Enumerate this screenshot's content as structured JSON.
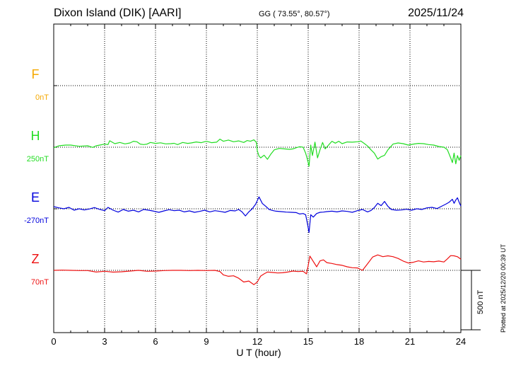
{
  "header": {
    "station": "Dixon Island (DIK)  [AARI]",
    "coords": "GG ( 73.55°,  80.57°)",
    "date": "2025/11/24"
  },
  "footnote": "Plotted at 2025/12/20 00:39 UT",
  "chart_data": {
    "type": "line",
    "title": "",
    "xlabel": "U T (hour)",
    "xlim": [
      0,
      24
    ],
    "x_ticks": [
      "0",
      "3",
      "6",
      "9",
      "12",
      "15",
      "18",
      "21",
      "24"
    ],
    "scale_bar": "500 nT",
    "components": [
      {
        "name": "F",
        "baseline_label": "0nT",
        "color": "#f5a800"
      },
      {
        "name": "H",
        "baseline_label": "250nT",
        "color": "#22dd22"
      },
      {
        "name": "E",
        "baseline_label": "-270nT",
        "color": "#0000dd"
      },
      {
        "name": "Z",
        "baseline_label": "70nT",
        "color": "#ee1111"
      }
    ],
    "series": [
      {
        "name": "H",
        "x": [
          0,
          0.3,
          0.7,
          1.0,
          1.5,
          2.0,
          2.3,
          2.5,
          2.8,
          3.0,
          3.2,
          3.3,
          3.6,
          3.9,
          4.2,
          4.5,
          4.7,
          4.9,
          5.1,
          5.3,
          5.5,
          5.7,
          6.0,
          6.3,
          6.6,
          6.9,
          7.1,
          7.3,
          7.6,
          7.9,
          8.1,
          8.4,
          8.7,
          9.0,
          9.3,
          9.6,
          9.8,
          10.0,
          10.3,
          10.6,
          10.9,
          11.2,
          11.4,
          11.6,
          11.8,
          11.95,
          12.0,
          12.1,
          12.2,
          12.4,
          12.6,
          12.8,
          13.0,
          13.3,
          13.6,
          13.9,
          14.1,
          14.3,
          14.5,
          14.7,
          14.85,
          14.95,
          15.05,
          15.15,
          15.25,
          15.4,
          15.55,
          15.7,
          15.85,
          16.0,
          16.2,
          16.4,
          16.6,
          16.8,
          17.0,
          17.3,
          17.6,
          17.9,
          18.1,
          18.3,
          18.5,
          18.7,
          18.9,
          19.1,
          19.3,
          19.5,
          19.7,
          20.0,
          20.3,
          20.6,
          20.9,
          21.2,
          21.5,
          21.8,
          22.1,
          22.4,
          22.7,
          23.0,
          23.2,
          23.4,
          23.5,
          23.6,
          23.7,
          23.8,
          23.9,
          24.0
        ],
        "y": [
          245,
          262,
          268,
          268,
          258,
          262,
          248,
          262,
          270,
          276,
          272,
          304,
          280,
          290,
          278,
          286,
          300,
          296,
          276,
          272,
          276,
          290,
          282,
          287,
          278,
          280,
          283,
          272,
          290,
          282,
          286,
          294,
          288,
          300,
          288,
          292,
          318,
          300,
          310,
          296,
          303,
          290,
          306,
          300,
          312,
          290,
          220,
          176,
          160,
          183,
          148,
          192,
          228,
          240,
          236,
          232,
          236,
          246,
          254,
          250,
          200,
          150,
          90,
          268,
          180,
          292,
          160,
          230,
          290,
          236,
          268,
          300,
          284,
          300,
          280,
          294,
          292,
          296,
          302,
          282,
          260,
          228,
          200,
          150,
          170,
          182,
          228,
          276,
          286,
          280,
          268,
          276,
          282,
          280,
          272,
          268,
          256,
          250,
          230,
          160,
          120,
          200,
          110,
          180,
          140,
          180
        ]
      },
      {
        "name": "E",
        "x": [
          0,
          0.3,
          0.6,
          0.9,
          1.2,
          1.5,
          1.8,
          2.1,
          2.4,
          2.7,
          3.0,
          3.2,
          3.5,
          3.8,
          4.1,
          4.4,
          4.7,
          5.0,
          5.3,
          5.6,
          5.9,
          6.2,
          6.5,
          6.8,
          7.1,
          7.4,
          7.7,
          8.0,
          8.3,
          8.6,
          8.9,
          9.2,
          9.5,
          9.8,
          10.1,
          10.4,
          10.7,
          10.9,
          11.1,
          11.3,
          11.5,
          11.7,
          11.9,
          12.1,
          12.3,
          12.5,
          12.7,
          12.9,
          13.1,
          13.4,
          13.7,
          14.0,
          14.3,
          14.5,
          14.7,
          14.85,
          14.95,
          15.05,
          15.15,
          15.3,
          15.5,
          15.7,
          15.9,
          16.1,
          16.4,
          16.7,
          17.0,
          17.3,
          17.6,
          17.9,
          18.2,
          18.5,
          18.7,
          18.9,
          19.1,
          19.3,
          19.5,
          19.7,
          19.9,
          20.2,
          20.5,
          20.8,
          21.1,
          21.4,
          21.7,
          22.0,
          22.3,
          22.6,
          22.9,
          23.1,
          23.3,
          23.5,
          23.6,
          23.7,
          23.8,
          23.9,
          24.0
        ],
        "y": [
          -252,
          -262,
          -270,
          -258,
          -282,
          -270,
          -280,
          -272,
          -260,
          -275,
          -286,
          -258,
          -282,
          -298,
          -276,
          -290,
          -282,
          -296,
          -276,
          -282,
          -290,
          -300,
          -288,
          -278,
          -286,
          -282,
          -296,
          -288,
          -300,
          -292,
          -282,
          -296,
          -286,
          -292,
          -300,
          -284,
          -288,
          -276,
          -296,
          -330,
          -296,
          -270,
          -232,
          -170,
          -226,
          -250,
          -276,
          -284,
          -290,
          -294,
          -298,
          -300,
          -302,
          -314,
          -310,
          -320,
          -390,
          -470,
          -320,
          -340,
          -310,
          -300,
          -298,
          -294,
          -290,
          -296,
          -288,
          -292,
          -300,
          -286,
          -276,
          -296,
          -284,
          -260,
          -224,
          -244,
          -208,
          -250,
          -276,
          -282,
          -280,
          -274,
          -282,
          -270,
          -276,
          -262,
          -258,
          -268,
          -246,
          -232,
          -216,
          -190,
          -224,
          -196,
          -178,
          -216,
          -248
        ]
      },
      {
        "name": "Z",
        "x": [
          0,
          0.5,
          1.0,
          1.5,
          2.0,
          2.5,
          3.0,
          3.5,
          4.0,
          4.5,
          5.0,
          5.5,
          6.0,
          6.5,
          7.0,
          7.5,
          8.0,
          8.5,
          9.0,
          9.5,
          9.8,
          10.0,
          10.3,
          10.6,
          10.9,
          11.2,
          11.5,
          11.8,
          12.0,
          12.2,
          12.4,
          12.6,
          12.9,
          13.2,
          13.5,
          13.8,
          14.1,
          14.4,
          14.7,
          14.9,
          15.0,
          15.1,
          15.3,
          15.5,
          15.7,
          15.9,
          16.1,
          16.4,
          16.7,
          17.0,
          17.3,
          17.6,
          17.9,
          18.2,
          18.5,
          18.8,
          19.1,
          19.4,
          19.7,
          20.0,
          20.3,
          20.6,
          20.9,
          21.2,
          21.5,
          21.8,
          22.1,
          22.4,
          22.7,
          23.0,
          23.2,
          23.4,
          23.6,
          23.8,
          24.0
        ],
        "y": [
          70,
          72,
          70,
          68,
          68,
          56,
          62,
          55,
          58,
          64,
          70,
          62,
          64,
          68,
          70,
          70,
          68,
          70,
          68,
          70,
          60,
          32,
          20,
          24,
          4,
          -28,
          -20,
          -50,
          -28,
          22,
          40,
          56,
          52,
          48,
          50,
          56,
          64,
          60,
          62,
          40,
          110,
          190,
          145,
          100,
          150,
          158,
          135,
          128,
          118,
          112,
          100,
          92,
          90,
          70,
          125,
          182,
          200,
          185,
          192,
          185,
          170,
          148,
          132,
          138,
          150,
          140,
          145,
          142,
          148,
          140,
          166,
          194,
          192,
          184,
          164
        ]
      }
    ]
  }
}
